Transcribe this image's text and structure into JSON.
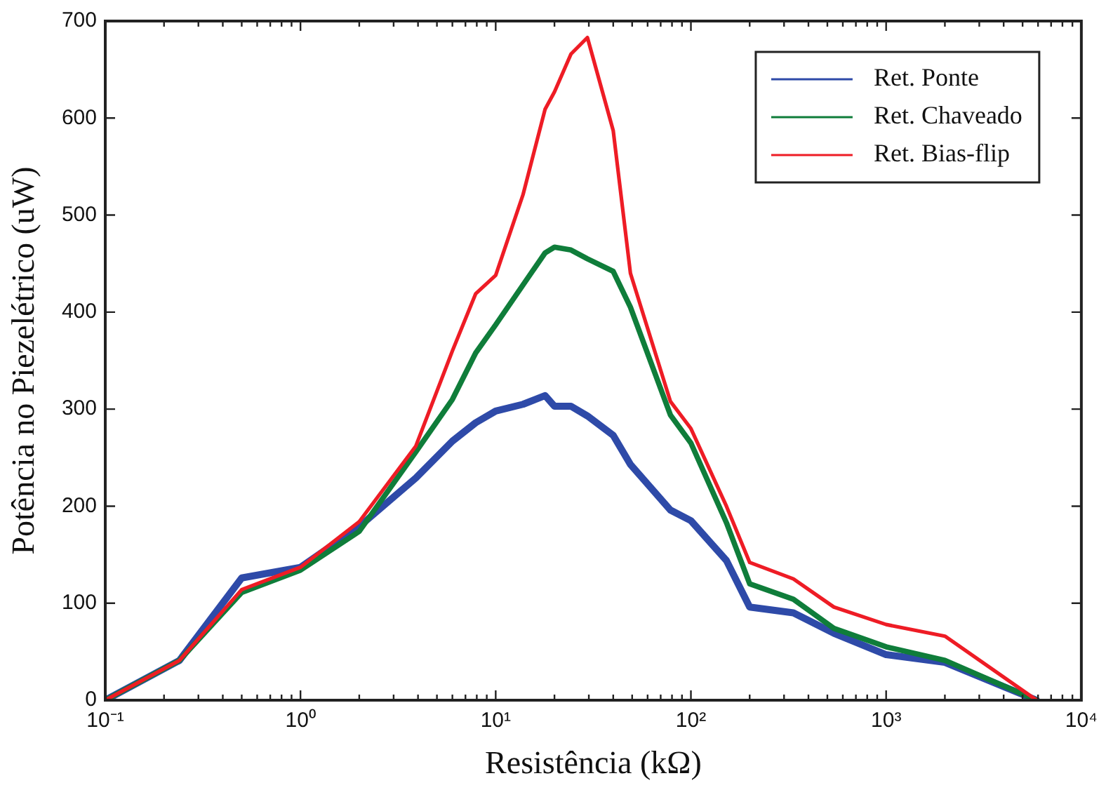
{
  "chart_data": {
    "type": "line",
    "xlabel": "Resistência (kΩ)",
    "ylabel": "Potência no Piezelétrico (uW)",
    "x": [
      0.1,
      0.24,
      0.5,
      1,
      2,
      3.9,
      6,
      7.9,
      10,
      13.8,
      17.9,
      20,
      24.3,
      29.5,
      40,
      49,
      78.5,
      100,
      152,
      200,
      335,
      540,
      1000,
      2000,
      5900
    ],
    "series": [
      {
        "name": "Ret. Ponte",
        "color": "#2e4aa8",
        "values": [
          0,
          41,
          126,
          137,
          179,
          229,
          267,
          286,
          298,
          305,
          314,
          303,
          303,
          293,
          273,
          243,
          196,
          185,
          144,
          96,
          90,
          69,
          47,
          39,
          0
        ]
      },
      {
        "name": "Ret. Chaveado",
        "color": "#0f7d3a",
        "values": [
          0,
          41,
          111,
          134,
          174,
          256,
          310,
          358,
          387,
          428,
          461,
          467,
          464,
          455,
          442,
          405,
          294,
          265,
          183,
          120,
          104,
          74,
          55,
          41,
          0
        ]
      },
      {
        "name": "Ret. Bias-flip",
        "color": "#ee1c25",
        "values": [
          0,
          41,
          114,
          137,
          184,
          262,
          360,
          419,
          438,
          521,
          609,
          627,
          666,
          683,
          587,
          440,
          308,
          280,
          200,
          142,
          125,
          96,
          78,
          66,
          0
        ]
      }
    ],
    "log": "x",
    "xlim": [
      0.1,
      10000
    ],
    "xticks": [
      {
        "value": 0.1,
        "label": "10⁻¹"
      },
      {
        "value": 0.2,
        "label": null
      },
      {
        "value": 0.3,
        "label": null
      },
      {
        "value": 0.4,
        "label": null
      },
      {
        "value": 0.5,
        "label": null
      },
      {
        "value": 0.6,
        "label": null
      },
      {
        "value": 0.7,
        "label": null
      },
      {
        "value": 0.8,
        "label": null
      },
      {
        "value": 0.9,
        "label": null
      },
      {
        "value": 1,
        "label": "10⁰"
      },
      {
        "value": 2,
        "label": null
      },
      {
        "value": 3,
        "label": null
      },
      {
        "value": 4,
        "label": null
      },
      {
        "value": 5,
        "label": null
      },
      {
        "value": 6,
        "label": null
      },
      {
        "value": 7,
        "label": null
      },
      {
        "value": 8,
        "label": null
      },
      {
        "value": 9,
        "label": null
      },
      {
        "value": 10,
        "label": "10¹"
      },
      {
        "value": 20,
        "label": null
      },
      {
        "value": 30,
        "label": null
      },
      {
        "value": 40,
        "label": null
      },
      {
        "value": 50,
        "label": null
      },
      {
        "value": 60,
        "label": null
      },
      {
        "value": 70,
        "label": null
      },
      {
        "value": 80,
        "label": null
      },
      {
        "value": 90,
        "label": null
      },
      {
        "value": 100,
        "label": "10²"
      },
      {
        "value": 200,
        "label": null
      },
      {
        "value": 300,
        "label": null
      },
      {
        "value": 400,
        "label": null
      },
      {
        "value": 500,
        "label": null
      },
      {
        "value": 600,
        "label": null
      },
      {
        "value": 700,
        "label": null
      },
      {
        "value": 800,
        "label": null
      },
      {
        "value": 900,
        "label": null
      },
      {
        "value": 1000,
        "label": "10³"
      },
      {
        "value": 2000,
        "label": null
      },
      {
        "value": 3000,
        "label": null
      },
      {
        "value": 4000,
        "label": null
      },
      {
        "value": 5000,
        "label": null
      },
      {
        "value": 6000,
        "label": null
      },
      {
        "value": 7000,
        "label": null
      },
      {
        "value": 8000,
        "label": null
      },
      {
        "value": 9000,
        "label": null
      },
      {
        "value": 10000,
        "label": "10⁴"
      }
    ],
    "ylim": [
      0,
      700
    ],
    "yticks": [
      0,
      100,
      200,
      300,
      400,
      500,
      600,
      700
    ],
    "grid": false,
    "legend": "top right",
    "marker": "none",
    "line_style": "solid"
  }
}
